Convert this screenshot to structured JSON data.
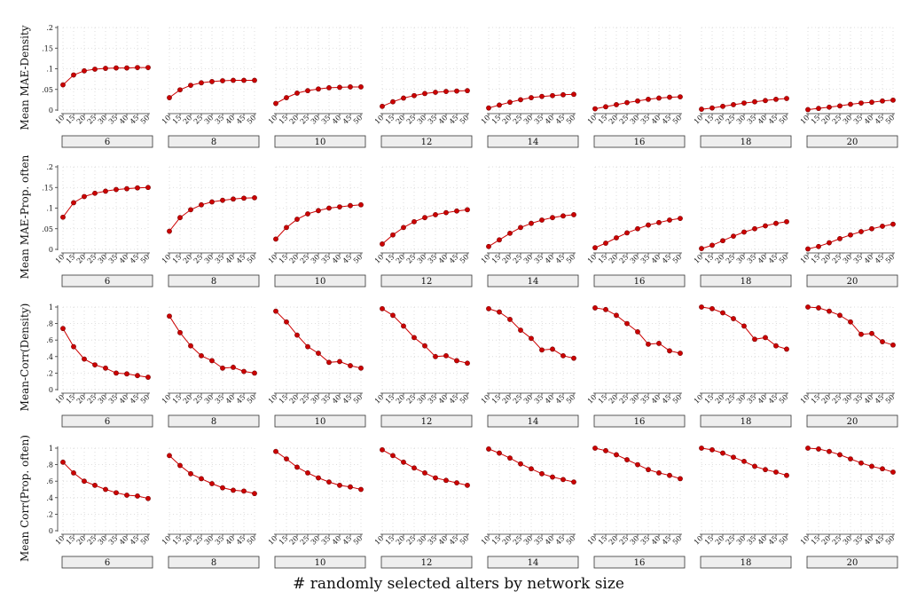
{
  "chart_data": {
    "type": "line",
    "layout": "small-multiples",
    "xlabel": "# randomly selected alters by network size",
    "x": [
      10,
      15,
      20,
      25,
      30,
      35,
      40,
      45,
      50
    ],
    "x_tick_labels": [
      "10",
      "15",
      "20",
      "25",
      "30",
      "35",
      "40",
      "45",
      "50"
    ],
    "panel_labels": [
      "6",
      "8",
      "10",
      "12",
      "14",
      "16",
      "18",
      "20"
    ],
    "grid": true,
    "series_color": "#cc0000",
    "marker_color": "#cc0000",
    "strip_color": "#eeeeee",
    "rows": [
      {
        "ylabel": "Mean MAE-Density",
        "ylim": [
          0,
          0.2
        ],
        "y_ticks": [
          0,
          0.05,
          0.1,
          0.15,
          0.2
        ],
        "y_tick_labels": [
          "0",
          ".05",
          ".1",
          ".15",
          ".2"
        ],
        "panels": [
          [
            0.061,
            0.085,
            0.095,
            0.099,
            0.101,
            0.102,
            0.102,
            0.103,
            0.103
          ],
          [
            0.03,
            0.049,
            0.06,
            0.066,
            0.069,
            0.071,
            0.072,
            0.072,
            0.072
          ],
          [
            0.016,
            0.03,
            0.041,
            0.047,
            0.051,
            0.054,
            0.055,
            0.056,
            0.056
          ],
          [
            0.009,
            0.02,
            0.029,
            0.035,
            0.04,
            0.043,
            0.045,
            0.046,
            0.047
          ],
          [
            0.005,
            0.012,
            0.019,
            0.025,
            0.03,
            0.033,
            0.035,
            0.037,
            0.038
          ],
          [
            0.003,
            0.008,
            0.013,
            0.018,
            0.022,
            0.026,
            0.029,
            0.031,
            0.032
          ],
          [
            0.002,
            0.005,
            0.009,
            0.013,
            0.017,
            0.02,
            0.023,
            0.026,
            0.028
          ],
          [
            0.001,
            0.004,
            0.007,
            0.01,
            0.014,
            0.017,
            0.019,
            0.022,
            0.024
          ]
        ]
      },
      {
        "ylabel": "Mean MAE-Prop. often",
        "ylim": [
          0,
          0.2
        ],
        "y_ticks": [
          0,
          0.05,
          0.1,
          0.15,
          0.2
        ],
        "y_tick_labels": [
          "0",
          ".05",
          ".1",
          ".15",
          ".2"
        ],
        "panels": [
          [
            0.078,
            0.113,
            0.128,
            0.136,
            0.141,
            0.145,
            0.147,
            0.149,
            0.15
          ],
          [
            0.044,
            0.077,
            0.096,
            0.108,
            0.115,
            0.119,
            0.122,
            0.124,
            0.125
          ],
          [
            0.025,
            0.053,
            0.073,
            0.086,
            0.094,
            0.1,
            0.103,
            0.106,
            0.108
          ],
          [
            0.013,
            0.035,
            0.053,
            0.067,
            0.077,
            0.084,
            0.089,
            0.093,
            0.096
          ],
          [
            0.007,
            0.023,
            0.039,
            0.053,
            0.063,
            0.071,
            0.077,
            0.081,
            0.084
          ],
          [
            0.004,
            0.015,
            0.028,
            0.04,
            0.05,
            0.059,
            0.065,
            0.071,
            0.075
          ],
          [
            0.002,
            0.01,
            0.021,
            0.032,
            0.042,
            0.05,
            0.057,
            0.063,
            0.067
          ],
          [
            0.001,
            0.007,
            0.016,
            0.026,
            0.035,
            0.043,
            0.05,
            0.056,
            0.061
          ]
        ]
      },
      {
        "ylabel": "Mean-Corr(Density)",
        "ylim": [
          0,
          1
        ],
        "y_ticks": [
          0,
          0.2,
          0.4,
          0.6,
          0.8,
          1
        ],
        "y_tick_labels": [
          "0",
          ".2",
          ".4",
          ".6",
          ".8",
          "1"
        ],
        "panels": [
          [
            0.74,
            0.52,
            0.37,
            0.3,
            0.26,
            0.2,
            0.19,
            0.17,
            0.15
          ],
          [
            0.89,
            0.69,
            0.53,
            0.41,
            0.35,
            0.26,
            0.27,
            0.22,
            0.2
          ],
          [
            0.95,
            0.82,
            0.66,
            0.52,
            0.44,
            0.33,
            0.34,
            0.29,
            0.26
          ],
          [
            0.98,
            0.9,
            0.77,
            0.63,
            0.53,
            0.4,
            0.41,
            0.35,
            0.32
          ],
          [
            0.98,
            0.94,
            0.85,
            0.72,
            0.62,
            0.48,
            0.49,
            0.41,
            0.38
          ],
          [
            0.99,
            0.97,
            0.9,
            0.8,
            0.7,
            0.55,
            0.56,
            0.47,
            0.44
          ],
          [
            1.0,
            0.98,
            0.93,
            0.86,
            0.77,
            0.61,
            0.63,
            0.53,
            0.49
          ],
          [
            1.0,
            0.99,
            0.95,
            0.9,
            0.82,
            0.67,
            0.68,
            0.58,
            0.54
          ]
        ]
      },
      {
        "ylabel": "Mean Corr(Prop. often)",
        "ylim": [
          0,
          1
        ],
        "y_ticks": [
          0,
          0.2,
          0.4,
          0.6,
          0.8,
          1
        ],
        "y_tick_labels": [
          "0",
          ".2",
          ".4",
          ".6",
          ".8",
          "1"
        ],
        "panels": [
          [
            0.83,
            0.7,
            0.6,
            0.55,
            0.5,
            0.46,
            0.43,
            0.42,
            0.39
          ],
          [
            0.91,
            0.79,
            0.69,
            0.63,
            0.57,
            0.52,
            0.49,
            0.48,
            0.45
          ],
          [
            0.96,
            0.87,
            0.77,
            0.7,
            0.64,
            0.59,
            0.55,
            0.53,
            0.5
          ],
          [
            0.98,
            0.91,
            0.83,
            0.76,
            0.7,
            0.64,
            0.61,
            0.58,
            0.55
          ],
          [
            0.99,
            0.94,
            0.88,
            0.81,
            0.75,
            0.69,
            0.65,
            0.62,
            0.59
          ],
          [
            1.0,
            0.97,
            0.92,
            0.86,
            0.8,
            0.74,
            0.7,
            0.67,
            0.63
          ],
          [
            1.0,
            0.98,
            0.94,
            0.89,
            0.84,
            0.78,
            0.74,
            0.71,
            0.67
          ],
          [
            1.0,
            0.99,
            0.96,
            0.92,
            0.87,
            0.82,
            0.78,
            0.75,
            0.71
          ]
        ]
      }
    ]
  }
}
